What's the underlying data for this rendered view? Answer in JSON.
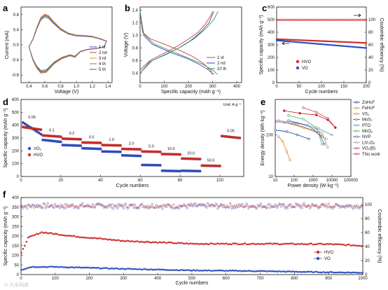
{
  "panels": {
    "a": "a",
    "b": "b",
    "c": "c",
    "d": "d",
    "e": "e",
    "f": "f"
  },
  "watermark": "© 大米网库",
  "chart_data": [
    {
      "id": "a",
      "type": "line",
      "xlabel": "Voltage (V)",
      "ylabel": "Current (mA)",
      "xlim": [
        0.3,
        1.45
      ],
      "ylim": [
        -1.0,
        1.0
      ],
      "xticks": [
        "0.4",
        "0.6",
        "0.8",
        "1.0",
        "1.2",
        "1.4"
      ],
      "yticks": [
        "-0.8",
        "-0.4",
        "0.0",
        "0.4",
        "0.8"
      ],
      "legend": [
        "1 st",
        "2 nd",
        "3 rd",
        "4 th",
        "5 th"
      ],
      "colors": [
        "#4040c0",
        "#d04040",
        "#c0a030",
        "#40a040",
        "#8040a0"
      ],
      "anodic": [
        [
          0.4,
          -0.05
        ],
        [
          0.45,
          0.15
        ],
        [
          0.5,
          0.45
        ],
        [
          0.55,
          0.7
        ],
        [
          0.6,
          0.78
        ],
        [
          0.65,
          0.74
        ],
        [
          0.7,
          0.62
        ],
        [
          0.8,
          0.42
        ],
        [
          0.9,
          0.3
        ],
        [
          1.0,
          0.25
        ],
        [
          1.1,
          0.24
        ],
        [
          1.2,
          0.22
        ],
        [
          1.3,
          0.16
        ],
        [
          1.38,
          0.1
        ]
      ],
      "cathodic": [
        [
          1.38,
          0.1
        ],
        [
          1.35,
          -0.05
        ],
        [
          1.25,
          -0.1
        ],
        [
          1.15,
          -0.12
        ],
        [
          1.05,
          -0.18
        ],
        [
          0.98,
          -0.32
        ],
        [
          0.92,
          -0.28
        ],
        [
          0.82,
          -0.35
        ],
        [
          0.72,
          -0.48
        ],
        [
          0.62,
          -0.7
        ],
        [
          0.55,
          -0.72
        ],
        [
          0.5,
          -0.6
        ],
        [
          0.45,
          -0.4
        ],
        [
          0.4,
          -0.05
        ]
      ]
    },
    {
      "id": "b",
      "type": "line",
      "xlabel": "Specific capacity (mAh g⁻¹)",
      "ylabel": "Voltage (V)",
      "xlim": [
        0,
        420
      ],
      "ylim": [
        0.25,
        1.45
      ],
      "xticks": [
        "0",
        "100",
        "200",
        "300",
        "400"
      ],
      "yticks": [
        "0.4",
        "0.6",
        "0.8",
        "1.0",
        "1.2",
        "1.4"
      ],
      "legend": [
        "1 st",
        "2 nd",
        "10 th"
      ],
      "colors": [
        "#d04040",
        "#4040c0",
        "#30a060"
      ],
      "curves": [
        {
          "name": "1 st",
          "discharge": [
            [
              0,
              1.38
            ],
            [
              10,
              1.05
            ],
            [
              40,
              0.95
            ],
            [
              100,
              0.86
            ],
            [
              160,
              0.77
            ],
            [
              220,
              0.66
            ],
            [
              260,
              0.56
            ],
            [
              290,
              0.46
            ],
            [
              300,
              0.38
            ]
          ],
          "charge": [
            [
              0,
              0.45
            ],
            [
              40,
              0.6
            ],
            [
              90,
              0.7
            ],
            [
              150,
              0.82
            ],
            [
              200,
              0.94
            ],
            [
              240,
              1.05
            ],
            [
              270,
              1.18
            ],
            [
              290,
              1.3
            ],
            [
              300,
              1.38
            ]
          ]
        },
        {
          "name": "2 nd",
          "discharge": [
            [
              0,
              1.38
            ],
            [
              15,
              1.0
            ],
            [
              50,
              0.86
            ],
            [
              120,
              0.74
            ],
            [
              190,
              0.64
            ],
            [
              240,
              0.55
            ],
            [
              280,
              0.46
            ],
            [
              305,
              0.38
            ]
          ],
          "charge": [
            [
              0,
              0.4
            ],
            [
              40,
              0.58
            ],
            [
              100,
              0.69
            ],
            [
              160,
              0.8
            ],
            [
              210,
              0.92
            ],
            [
              250,
              1.05
            ],
            [
              285,
              1.2
            ],
            [
              305,
              1.38
            ]
          ]
        },
        {
          "name": "10 th",
          "discharge": [
            [
              0,
              1.38
            ],
            [
              15,
              1.02
            ],
            [
              60,
              0.86
            ],
            [
              130,
              0.75
            ],
            [
              200,
              0.64
            ],
            [
              260,
              0.54
            ],
            [
              300,
              0.45
            ],
            [
              320,
              0.38
            ]
          ],
          "charge": [
            [
              0,
              0.4
            ],
            [
              50,
              0.6
            ],
            [
              110,
              0.7
            ],
            [
              170,
              0.82
            ],
            [
              225,
              0.95
            ],
            [
              270,
              1.1
            ],
            [
              305,
              1.25
            ],
            [
              322,
              1.38
            ]
          ]
        }
      ]
    },
    {
      "id": "c",
      "type": "scatter",
      "xlabel": "Cycle numbers",
      "ylabel": "Specific capacity (mAh g⁻¹)",
      "ylabel2": "Coulombic efficiency (%)",
      "xlim": [
        0,
        200
      ],
      "ylim": [
        0,
        600
      ],
      "ylim2": [
        0,
        120
      ],
      "xticks": [
        "0",
        "50",
        "100",
        "150",
        "200"
      ],
      "yticks": [
        "0",
        "100",
        "200",
        "300",
        "400",
        "500",
        "600"
      ],
      "yticks2": [
        "0",
        "20",
        "40",
        "60",
        "80",
        "100"
      ],
      "series": [
        {
          "name": "HVO",
          "color": "#d03030",
          "start": 345,
          "end": 315
        },
        {
          "name": "VO",
          "color": "#3050c0",
          "start": 335,
          "end": 275
        },
        {
          "name": "CE",
          "color": "#d03030",
          "value": 99.5
        }
      ]
    },
    {
      "id": "d",
      "type": "scatter",
      "xlabel": "Cycle numbers",
      "ylabel": "Specific capacity (mAh g⁻¹)",
      "unit_note": "Unit: A g⁻¹",
      "xlim": [
        0,
        112
      ],
      "ylim": [
        0,
        600
      ],
      "xticks": [
        "0",
        "20",
        "40",
        "60",
        "80",
        "100"
      ],
      "yticks": [
        "0",
        "100",
        "200",
        "300",
        "400",
        "500",
        "600"
      ],
      "legend": [
        "VO₂",
        "HVO"
      ],
      "rates": [
        "0.05",
        "0.1",
        "0.2",
        "0.5",
        "1.0",
        "2.0",
        "5.0",
        "10.0",
        "20.0",
        "50.0",
        "0.05"
      ],
      "hvo": [
        [
          1,
          10,
          385,
          365
        ],
        [
          11,
          20,
          320,
          310
        ],
        [
          21,
          30,
          295,
          290
        ],
        [
          31,
          40,
          265,
          262
        ],
        [
          41,
          50,
          245,
          242
        ],
        [
          51,
          60,
          215,
          212
        ],
        [
          61,
          70,
          195,
          192
        ],
        [
          71,
          80,
          175,
          172
        ],
        [
          81,
          90,
          140,
          136
        ],
        [
          91,
          100,
          85,
          82
        ],
        [
          101,
          110,
          315,
          300
        ]
      ],
      "vo": [
        [
          1,
          10,
          420,
          330
        ],
        [
          11,
          20,
          285,
          270
        ],
        [
          21,
          30,
          245,
          240
        ],
        [
          31,
          40,
          220,
          215
        ],
        [
          41,
          50,
          195,
          192
        ],
        [
          51,
          60,
          165,
          160
        ],
        [
          61,
          70,
          90,
          88
        ],
        [
          71,
          80,
          45,
          42
        ],
        [
          81,
          90,
          45,
          42
        ]
      ]
    },
    {
      "id": "e",
      "type": "line",
      "xlabel": "Power density (W·kg⁻¹)",
      "ylabel": "Energy density (Wh·kg⁻¹)",
      "log": true,
      "xticks": [
        "10",
        "100",
        "1000",
        "10000",
        "100000"
      ],
      "yticks": [
        "10",
        "100"
      ],
      "series": [
        {
          "name": "ZnHcF",
          "color": "#2040a0",
          "pts": [
            [
              10,
              130
            ],
            [
              40,
              120
            ],
            [
              150,
              100
            ],
            [
              600,
              80
            ]
          ]
        },
        {
          "name": "FeHcF",
          "color": "#e08020",
          "pts": [
            [
              15,
              90
            ],
            [
              25,
              70
            ],
            [
              40,
              40
            ],
            [
              60,
              25
            ]
          ]
        },
        {
          "name": "VS₂",
          "color": "#c0a000",
          "pts": [
            [
              30,
              200
            ],
            [
              300,
              150
            ],
            [
              2000,
              110
            ],
            [
              5000,
              80
            ]
          ]
        },
        {
          "name": "MoS₂",
          "color": "#a04090",
          "pts": [
            [
              12,
              210
            ],
            [
              100,
              180
            ],
            [
              1000,
              130
            ],
            [
              3000,
              90
            ]
          ]
        },
        {
          "name": "PTO",
          "color": "#40a0c0",
          "pts": [
            [
              15,
              220
            ],
            [
              150,
              190
            ],
            [
              2000,
              140
            ],
            [
              10000,
              100
            ]
          ]
        },
        {
          "name": "MnO₂",
          "color": "#40b050",
          "pts": [
            [
              50,
              290
            ],
            [
              300,
              240
            ],
            [
              1500,
              150
            ],
            [
              3000,
              60
            ]
          ]
        },
        {
          "name": "NVP",
          "color": "#5050c0",
          "pts": [
            [
              50,
              220
            ],
            [
              500,
              170
            ],
            [
              2000,
              110
            ],
            [
              4000,
              60
            ]
          ]
        },
        {
          "name": "LiV₃O₈",
          "color": "#a0a0a0",
          "pts": [
            [
              60,
              200
            ],
            [
              800,
              160
            ],
            [
              3000,
              110
            ],
            [
              6000,
              50
            ]
          ]
        },
        {
          "name": "VO₂(B)",
          "color": "#c04060",
          "pts": [
            [
              300,
              450
            ],
            [
              1500,
              350
            ],
            [
              6000,
              250
            ],
            [
              15000,
              150
            ]
          ]
        },
        {
          "name": "This work",
          "color": "#d02020",
          "pts": [
            [
              30,
              380
            ],
            [
              200,
              330
            ],
            [
              1500,
              300
            ],
            [
              6000,
              230
            ],
            [
              15000,
              150
            ]
          ]
        }
      ]
    },
    {
      "id": "f",
      "type": "scatter",
      "xlabel": "Cycle numbers",
      "ylabel": "Specific capacity (mAh g⁻¹)",
      "ylabel2": "Coulombic efficiency (%)",
      "xlim": [
        0,
        1000
      ],
      "ylim": [
        0,
        400
      ],
      "ylim2": [
        0,
        110
      ],
      "xticks": [
        "0",
        "100",
        "200",
        "300",
        "400",
        "500",
        "600",
        "700",
        "800",
        "900",
        "1000"
      ],
      "yticks": [
        "0",
        "50",
        "100",
        "150",
        "200",
        "250",
        "300",
        "350",
        "400"
      ],
      "yticks2": [
        "0",
        "20",
        "40",
        "60",
        "80",
        "100"
      ],
      "legend": [
        "HVO",
        "VO"
      ],
      "hvo_curve": [
        [
          1,
          110
        ],
        [
          20,
          190
        ],
        [
          60,
          220
        ],
        [
          150,
          200
        ],
        [
          300,
          175
        ],
        [
          500,
          160
        ],
        [
          700,
          160
        ],
        [
          900,
          158
        ],
        [
          1000,
          150
        ]
      ],
      "vo_curve": [
        [
          1,
          25
        ],
        [
          30,
          40
        ],
        [
          100,
          40
        ],
        [
          300,
          30
        ],
        [
          500,
          22
        ],
        [
          700,
          18
        ],
        [
          900,
          12
        ],
        [
          1000,
          10
        ]
      ],
      "ce": 98
    }
  ]
}
